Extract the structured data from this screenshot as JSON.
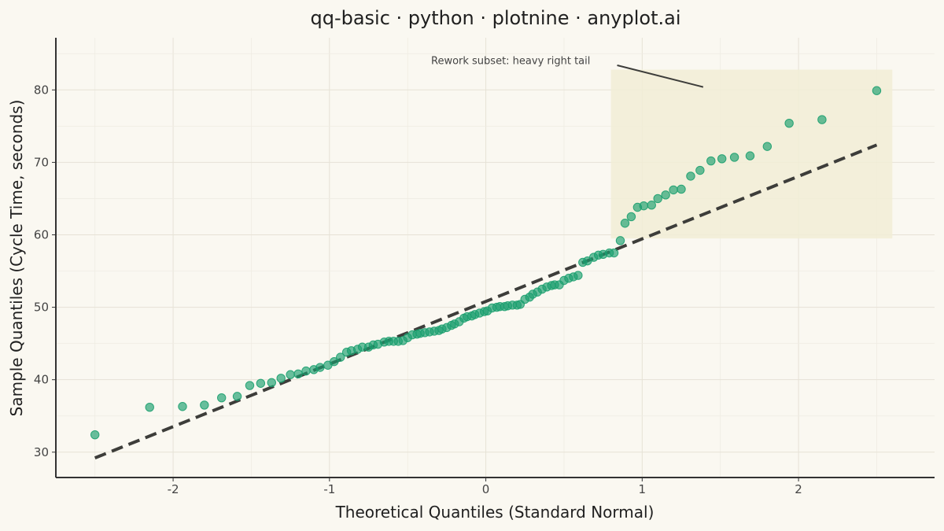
{
  "chart_data": {
    "type": "scatter",
    "title": "qq-basic · python · plotnine · anyplot.ai",
    "xlabel": "Theoretical Quantiles (Standard Normal)",
    "ylabel": "Sample Quantiles (Cycle Time, seconds)",
    "xlim": [
      -2.75,
      2.87
    ],
    "ylim": [
      26.5,
      87.2
    ],
    "xticks": [
      -2,
      -1,
      0,
      1,
      2
    ],
    "xtick_labels": [
      "-2",
      "-1",
      "0",
      "1",
      "2"
    ],
    "yticks": [
      30,
      40,
      50,
      60,
      70,
      80
    ],
    "ytick_labels": [
      "30",
      "40",
      "50",
      "60",
      "70",
      "80"
    ],
    "grid": true,
    "point_color": "#1A9E6E",
    "reference_line": {
      "x": [
        -2.5,
        2.5
      ],
      "y": [
        29.2,
        72.4
      ],
      "style": "dashed",
      "color": "#3d3d3a"
    },
    "highlight_region": {
      "x": [
        0.8,
        2.6
      ],
      "y": [
        59.5,
        82.8
      ],
      "color": "#F1EDD6"
    },
    "annotation": {
      "text": "Rework subset: heavy right tail",
      "text_x": -0.35,
      "text_y": 84.0,
      "arrow_from": [
        0.84,
        83.4
      ],
      "arrow_to": [
        1.39,
        80.4
      ]
    },
    "points": [
      [
        -2.5,
        32.4
      ],
      [
        -2.15,
        36.2
      ],
      [
        -1.94,
        36.3
      ],
      [
        -1.8,
        36.5
      ],
      [
        -1.69,
        37.5
      ],
      [
        -1.59,
        37.7
      ],
      [
        -1.51,
        39.2
      ],
      [
        -1.44,
        39.5
      ],
      [
        -1.37,
        39.6
      ],
      [
        -1.31,
        40.2
      ],
      [
        -1.25,
        40.7
      ],
      [
        -1.2,
        40.8
      ],
      [
        -1.15,
        41.2
      ],
      [
        -1.1,
        41.4
      ],
      [
        -1.06,
        41.7
      ],
      [
        -1.01,
        42.0
      ],
      [
        -0.97,
        42.5
      ],
      [
        -0.93,
        43.1
      ],
      [
        -0.89,
        43.8
      ],
      [
        -0.86,
        44.0
      ],
      [
        -0.82,
        44.2
      ],
      [
        -0.79,
        44.5
      ],
      [
        -0.75,
        44.5
      ],
      [
        -0.72,
        44.8
      ],
      [
        -0.69,
        44.9
      ],
      [
        -0.65,
        45.2
      ],
      [
        -0.62,
        45.3
      ],
      [
        -0.59,
        45.3
      ],
      [
        -0.56,
        45.3
      ],
      [
        -0.53,
        45.4
      ],
      [
        -0.5,
        45.8
      ],
      [
        -0.47,
        46.2
      ],
      [
        -0.44,
        46.3
      ],
      [
        -0.42,
        46.4
      ],
      [
        -0.39,
        46.5
      ],
      [
        -0.36,
        46.6
      ],
      [
        -0.33,
        46.7
      ],
      [
        -0.3,
        46.8
      ],
      [
        -0.28,
        47.0
      ],
      [
        -0.25,
        47.2
      ],
      [
        -0.22,
        47.5
      ],
      [
        -0.2,
        47.7
      ],
      [
        -0.17,
        48.0
      ],
      [
        -0.14,
        48.5
      ],
      [
        -0.12,
        48.7
      ],
      [
        -0.09,
        48.8
      ],
      [
        -0.07,
        49.0
      ],
      [
        -0.04,
        49.2
      ],
      [
        -0.01,
        49.4
      ],
      [
        0.01,
        49.5
      ],
      [
        0.04,
        49.9
      ],
      [
        0.07,
        50.0
      ],
      [
        0.09,
        50.1
      ],
      [
        0.12,
        50.1
      ],
      [
        0.14,
        50.2
      ],
      [
        0.17,
        50.3
      ],
      [
        0.2,
        50.3
      ],
      [
        0.22,
        50.4
      ],
      [
        0.25,
        51.1
      ],
      [
        0.28,
        51.4
      ],
      [
        0.3,
        51.8
      ],
      [
        0.33,
        52.1
      ],
      [
        0.36,
        52.5
      ],
      [
        0.39,
        52.8
      ],
      [
        0.42,
        53.0
      ],
      [
        0.44,
        53.1
      ],
      [
        0.47,
        53.1
      ],
      [
        0.5,
        53.7
      ],
      [
        0.53,
        54.0
      ],
      [
        0.56,
        54.2
      ],
      [
        0.59,
        54.4
      ],
      [
        0.62,
        56.2
      ],
      [
        0.65,
        56.4
      ],
      [
        0.69,
        56.9
      ],
      [
        0.72,
        57.2
      ],
      [
        0.75,
        57.3
      ],
      [
        0.79,
        57.5
      ],
      [
        0.82,
        57.5
      ],
      [
        0.86,
        59.2
      ],
      [
        0.89,
        61.6
      ],
      [
        0.93,
        62.5
      ],
      [
        0.97,
        63.8
      ],
      [
        1.01,
        64.0
      ],
      [
        1.06,
        64.1
      ],
      [
        1.1,
        65.0
      ],
      [
        1.15,
        65.5
      ],
      [
        1.2,
        66.2
      ],
      [
        1.25,
        66.3
      ],
      [
        1.31,
        68.1
      ],
      [
        1.37,
        68.9
      ],
      [
        1.44,
        70.2
      ],
      [
        1.51,
        70.5
      ],
      [
        1.59,
        70.7
      ],
      [
        1.69,
        70.9
      ],
      [
        1.8,
        72.2
      ],
      [
        1.94,
        75.4
      ],
      [
        2.15,
        75.9
      ],
      [
        2.5,
        79.9
      ]
    ]
  }
}
